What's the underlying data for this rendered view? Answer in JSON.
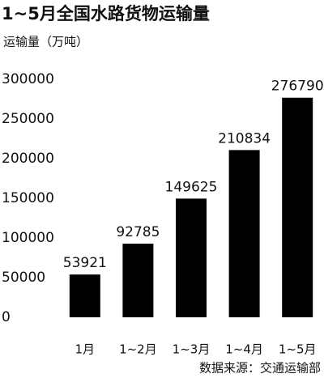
{
  "chart_data": {
    "type": "bar",
    "title": "1~5月全国水路货物运输量",
    "y_label": "运输量（万吨）",
    "categories": [
      "1月",
      "1~2月",
      "1~3月",
      "1~4月",
      "1~5月"
    ],
    "values": [
      53921,
      92785,
      149625,
      210834,
      276790
    ],
    "color": "#000000",
    "ylim": [
      0,
      300000
    ],
    "yticks": [
      0,
      50000,
      100000,
      150000,
      200000,
      250000,
      300000
    ],
    "grid": false,
    "source": "数据来源：交通运输部"
  }
}
